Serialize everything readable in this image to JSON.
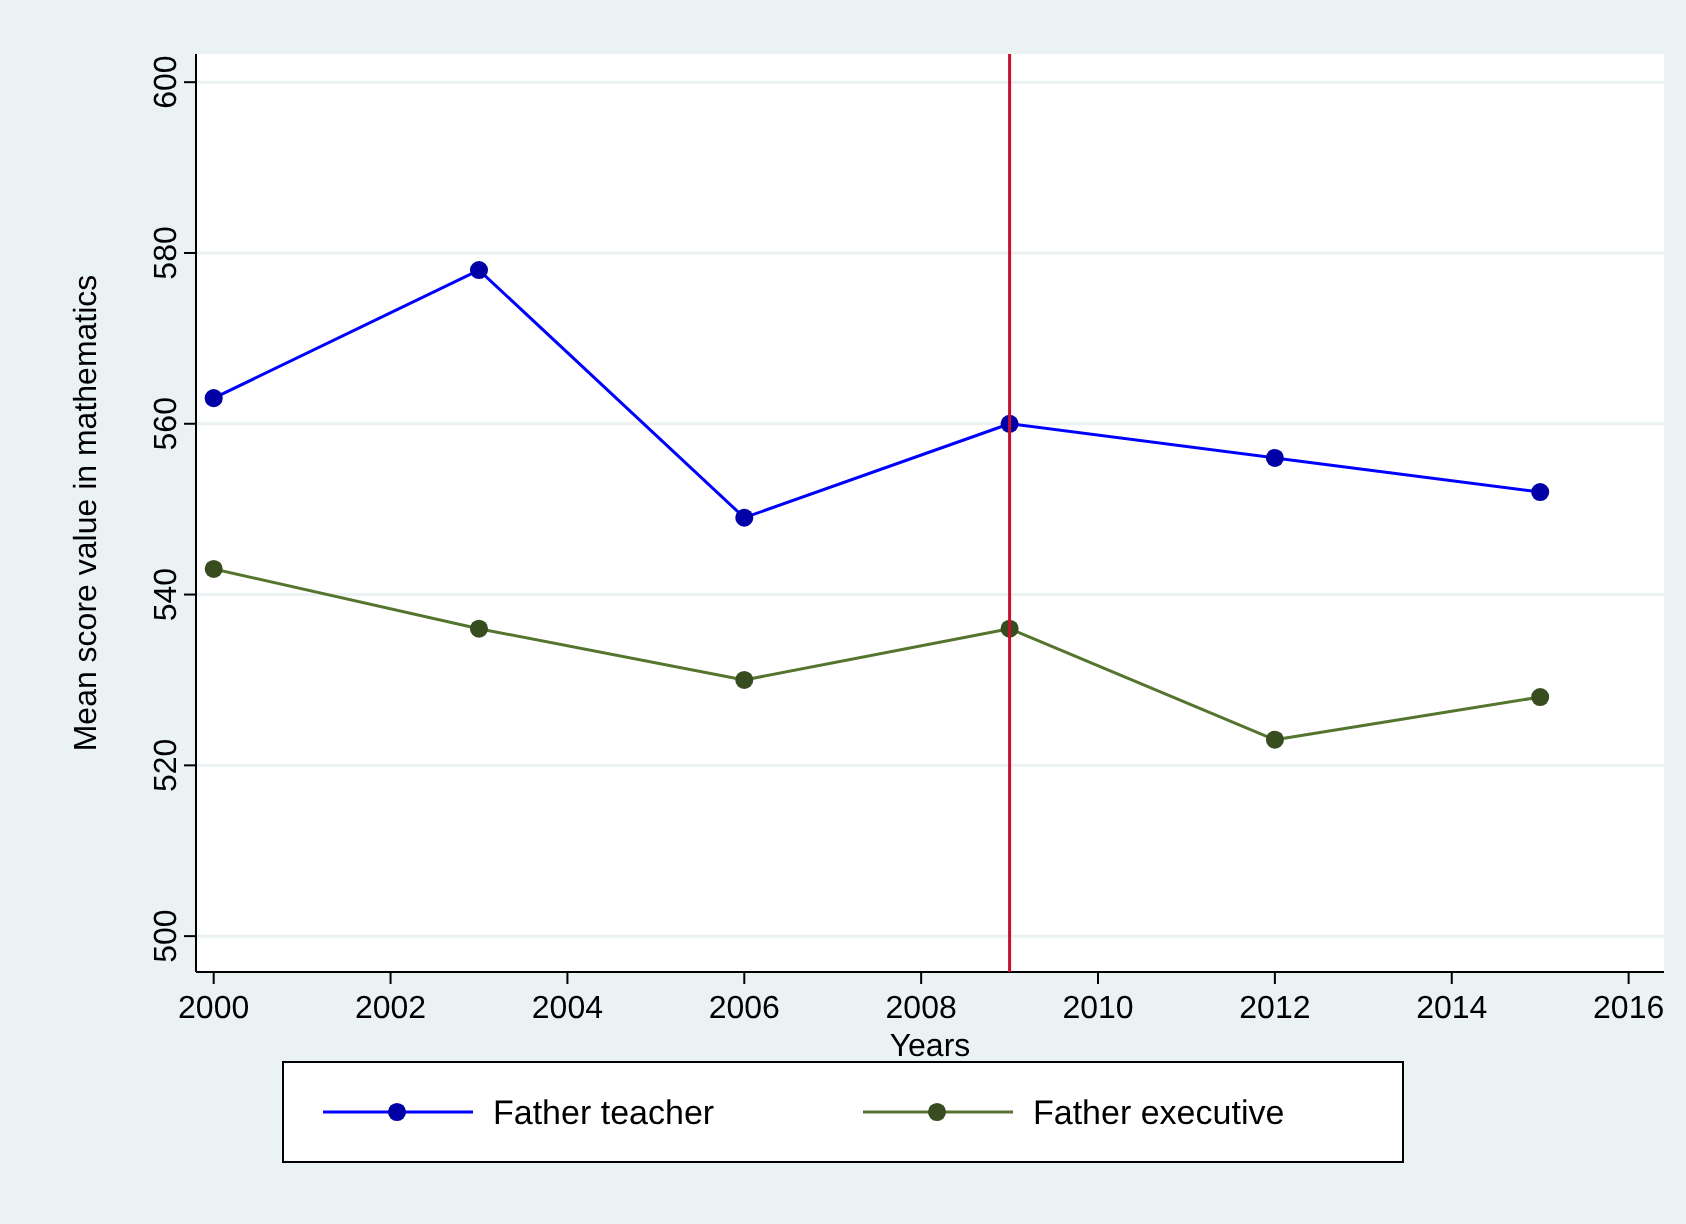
{
  "chart_data": {
    "type": "line",
    "xlabel": "Years",
    "ylabel": "Mean score value in mathematics",
    "x": [
      2000,
      2003,
      2006,
      2009,
      2012,
      2015
    ],
    "series": [
      {
        "name": "Father teacher",
        "color": "#0000ff",
        "values": [
          563,
          578,
          549,
          560,
          556,
          552
        ]
      },
      {
        "name": "Father executive",
        "color": "#55752f",
        "values": [
          543,
          536,
          530,
          536,
          523,
          528
        ]
      }
    ],
    "xlim": [
      1999.8,
      2016.4
    ],
    "xticks": [
      2000,
      2002,
      2004,
      2006,
      2008,
      2010,
      2012,
      2014,
      2016
    ],
    "ylim": [
      495.8,
      603.3
    ],
    "yticks": [
      500,
      520,
      540,
      560,
      580,
      600
    ],
    "ref_lines": [
      {
        "axis": "x",
        "value": 2009,
        "color": "#c8102e"
      }
    ],
    "grid": "y",
    "legend": "bottom",
    "marker": "circle"
  }
}
